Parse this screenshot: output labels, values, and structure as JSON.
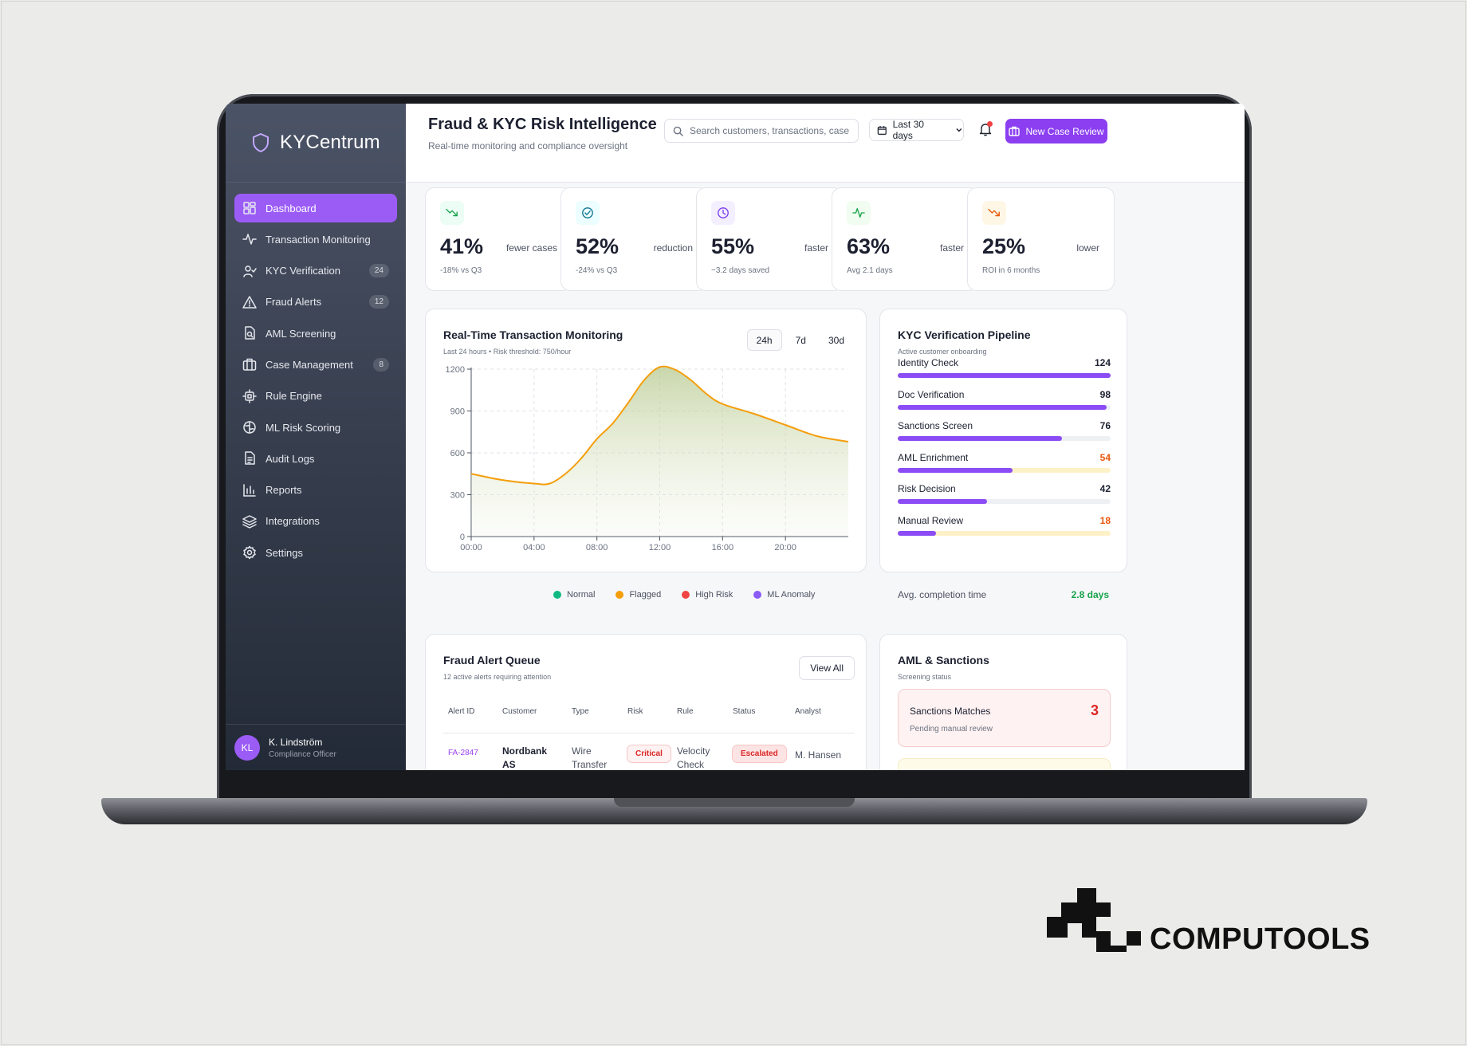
{
  "app": {
    "name": "KYCentrum"
  },
  "header": {
    "title": "Fraud & KYC Risk Intelligence",
    "subtitle": "Real-time monitoring and compliance oversight",
    "search_placeholder": "Search customers, transactions, cases...",
    "date_range": "Last 30 days",
    "new_case_label": "New Case Review"
  },
  "sidebar": {
    "items": [
      {
        "label": "Dashboard",
        "icon": "dashboard-icon",
        "active": true
      },
      {
        "label": "Transaction Monitoring",
        "icon": "activity-icon"
      },
      {
        "label": "KYC Verification",
        "icon": "user-check-icon",
        "badge": "24"
      },
      {
        "label": "Fraud Alerts",
        "icon": "alert-triangle-icon",
        "badge": "12"
      },
      {
        "label": "AML Screening",
        "icon": "file-search-icon"
      },
      {
        "label": "Case Management",
        "icon": "briefcase-icon",
        "badge": "8"
      },
      {
        "label": "Rule Engine",
        "icon": "cpu-icon"
      },
      {
        "label": "ML Risk Scoring",
        "icon": "brain-icon"
      },
      {
        "label": "Audit Logs",
        "icon": "file-text-icon"
      },
      {
        "label": "Reports",
        "icon": "bar-chart-icon"
      },
      {
        "label": "Integrations",
        "icon": "layers-icon"
      },
      {
        "label": "Settings",
        "icon": "gear-icon"
      }
    ],
    "user": {
      "initials": "KL",
      "name": "K. Lindström",
      "role": "Compliance Officer"
    }
  },
  "kpis": [
    {
      "value": "41%",
      "label": "fewer cases",
      "sub": "-18% vs Q3",
      "icon": "trending-down-icon",
      "color": "#16a34a",
      "bg": "#ecfdf5"
    },
    {
      "value": "52%",
      "label": "reduction",
      "sub": "-24% vs Q3",
      "icon": "check-circle-icon",
      "color": "#0e7490",
      "bg": "#ecfeff"
    },
    {
      "value": "55%",
      "label": "faster",
      "sub": "−3.2 days saved",
      "icon": "clock-icon",
      "color": "#7c3aed",
      "bg": "#f3efff"
    },
    {
      "value": "63%",
      "label": "faster",
      "sub": "Avg 2.1 days",
      "icon": "activity-icon",
      "color": "#16a34a",
      "bg": "#f0fdf0"
    },
    {
      "value": "25%",
      "label": "lower",
      "sub": "ROI in 6 months",
      "icon": "trending-down-icon",
      "color": "#ea580c",
      "bg": "#fff7e6"
    }
  ],
  "monitoring": {
    "title": "Real-Time Transaction Monitoring",
    "subtitle": "Last 24 hours • Risk threshold: 750/hour",
    "ranges": [
      "24h",
      "7d",
      "30d"
    ],
    "active_range": "24h",
    "legend": [
      {
        "label": "Normal",
        "color": "#10b981"
      },
      {
        "label": "Flagged",
        "color": "#f59e0b"
      },
      {
        "label": "High Risk",
        "color": "#ef4444"
      },
      {
        "label": "ML Anomaly",
        "color": "#8b5cf6"
      }
    ]
  },
  "chart_data": {
    "type": "area",
    "title": "Real-Time Transaction Monitoring",
    "xlabel": "",
    "ylabel": "",
    "x_ticks": [
      "00:00",
      "04:00",
      "08:00",
      "12:00",
      "16:00",
      "20:00"
    ],
    "y_ticks": [
      0,
      300,
      600,
      900,
      1200
    ],
    "xlim": [
      0,
      24
    ],
    "ylim": [
      0,
      1200
    ],
    "grid": true,
    "series": [
      {
        "name": "Flagged",
        "color": "#f59e0b",
        "x": [
          0,
          2,
          4,
          5,
          6,
          7,
          8,
          9,
          10,
          11,
          12,
          13,
          14,
          15,
          16,
          18,
          20,
          22,
          24
        ],
        "y": [
          450,
          405,
          380,
          380,
          450,
          560,
          700,
          810,
          960,
          1120,
          1215,
          1195,
          1120,
          1020,
          950,
          880,
          800,
          720,
          680
        ]
      }
    ]
  },
  "pipeline": {
    "title": "KYC Verification Pipeline",
    "subtitle": "Active customer onboarding",
    "stages": [
      {
        "name": "Identity Check",
        "count": "124",
        "fraction": 1.0,
        "count_color": "#1c2030",
        "track": "#eef0f4"
      },
      {
        "name": "Doc Verification",
        "count": "98",
        "fraction": 0.98,
        "count_color": "#1c2030",
        "track": "#eef0f4"
      },
      {
        "name": "Sanctions Screen",
        "count": "76",
        "fraction": 0.77,
        "count_color": "#1c2030",
        "track": "#eef0f4"
      },
      {
        "name": "AML Enrichment",
        "count": "54",
        "fraction": 0.54,
        "count_color": "#ea580c",
        "track": "#fdf1c8"
      },
      {
        "name": "Risk Decision",
        "count": "42",
        "fraction": 0.42,
        "count_color": "#1c2030",
        "track": "#eef0f4"
      },
      {
        "name": "Manual Review",
        "count": "18",
        "fraction": 0.18,
        "count_color": "#ea580c",
        "track": "#fdf1c8"
      }
    ],
    "avg_label": "Avg. completion time",
    "avg_value": "2.8 days"
  },
  "alerts": {
    "title": "Fraud Alert Queue",
    "subtitle": "12 active alerts requiring attention",
    "view_all": "View All",
    "columns": [
      "Alert ID",
      "Customer",
      "Type",
      "Risk",
      "Rule",
      "Status",
      "Analyst"
    ],
    "rows": [
      {
        "id": "FA-2847",
        "customer": "Nordbank AS",
        "type": "Wire Transfer",
        "risk": "Critical",
        "rule": "Velocity Check",
        "status": "Escalated",
        "analyst": "M. Hansen"
      }
    ]
  },
  "aml": {
    "title": "AML & Sanctions",
    "subtitle": "Screening status",
    "matches_label": "Sanctions Matches",
    "matches_sub": "Pending manual review",
    "matches_count": "3"
  },
  "watermark": {
    "brand": "COMPUTOOLS"
  }
}
